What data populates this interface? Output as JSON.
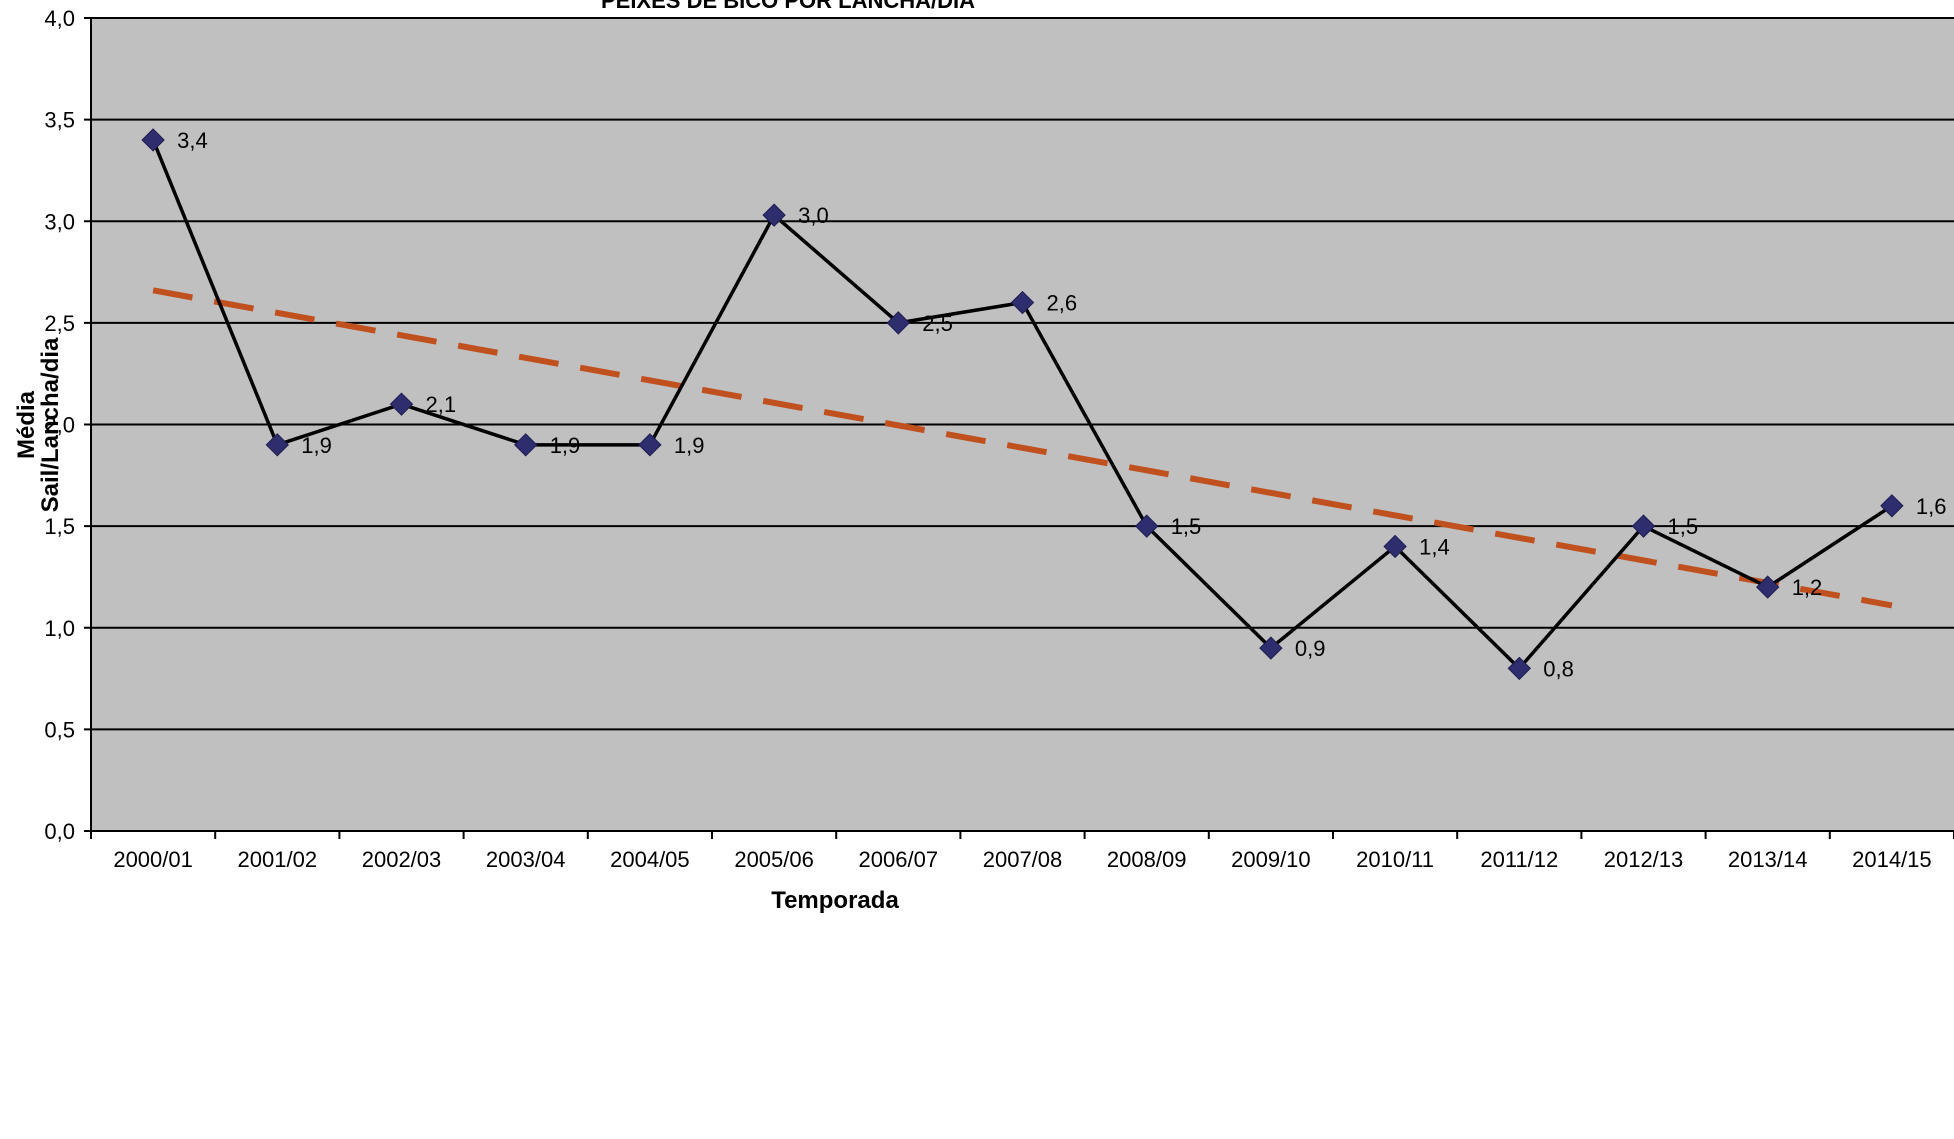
{
  "chart_data": {
    "type": "line",
    "title": "PEIXES DE BICO POR LANCHA/DIA",
    "xlabel": "Temporada",
    "ylabel_line1": "Média",
    "ylabel_line2": "Sail/Lancha/dia",
    "categories": [
      "2000/01",
      "2001/02",
      "2002/03",
      "2003/04",
      "2004/05",
      "2005/06",
      "2006/07",
      "2007/08",
      "2008/09",
      "2009/10",
      "2010/11",
      "2011/12",
      "2012/13",
      "2013/14",
      "2014/15"
    ],
    "series": [
      {
        "values": [
          3.4,
          1.9,
          2.1,
          1.9,
          1.9,
          3.03,
          2.5,
          2.6,
          1.5,
          0.9,
          1.4,
          0.8,
          1.5,
          1.2,
          1.6
        ],
        "data_labels": [
          "3,4",
          "1,9",
          "2,1",
          "1,9",
          "1,9",
          "3,0",
          "2,5",
          "2,6",
          "1,5",
          "0,9",
          "1,4",
          "0,8",
          "1,5",
          "1,2",
          "1,6"
        ],
        "color": "#000000",
        "marker_color": "#2e2d6e"
      }
    ],
    "trendline": {
      "start": 2.66,
      "end": 1.11,
      "color": "#c0511f",
      "style": "dashed"
    },
    "y_ticks": [
      "0,0",
      "0,5",
      "1,0",
      "1,5",
      "2,0",
      "2,5",
      "3,0",
      "3,5",
      "4,0"
    ],
    "ylim": [
      0,
      4
    ],
    "grid": true,
    "plot_background": "#c0c0c0"
  }
}
